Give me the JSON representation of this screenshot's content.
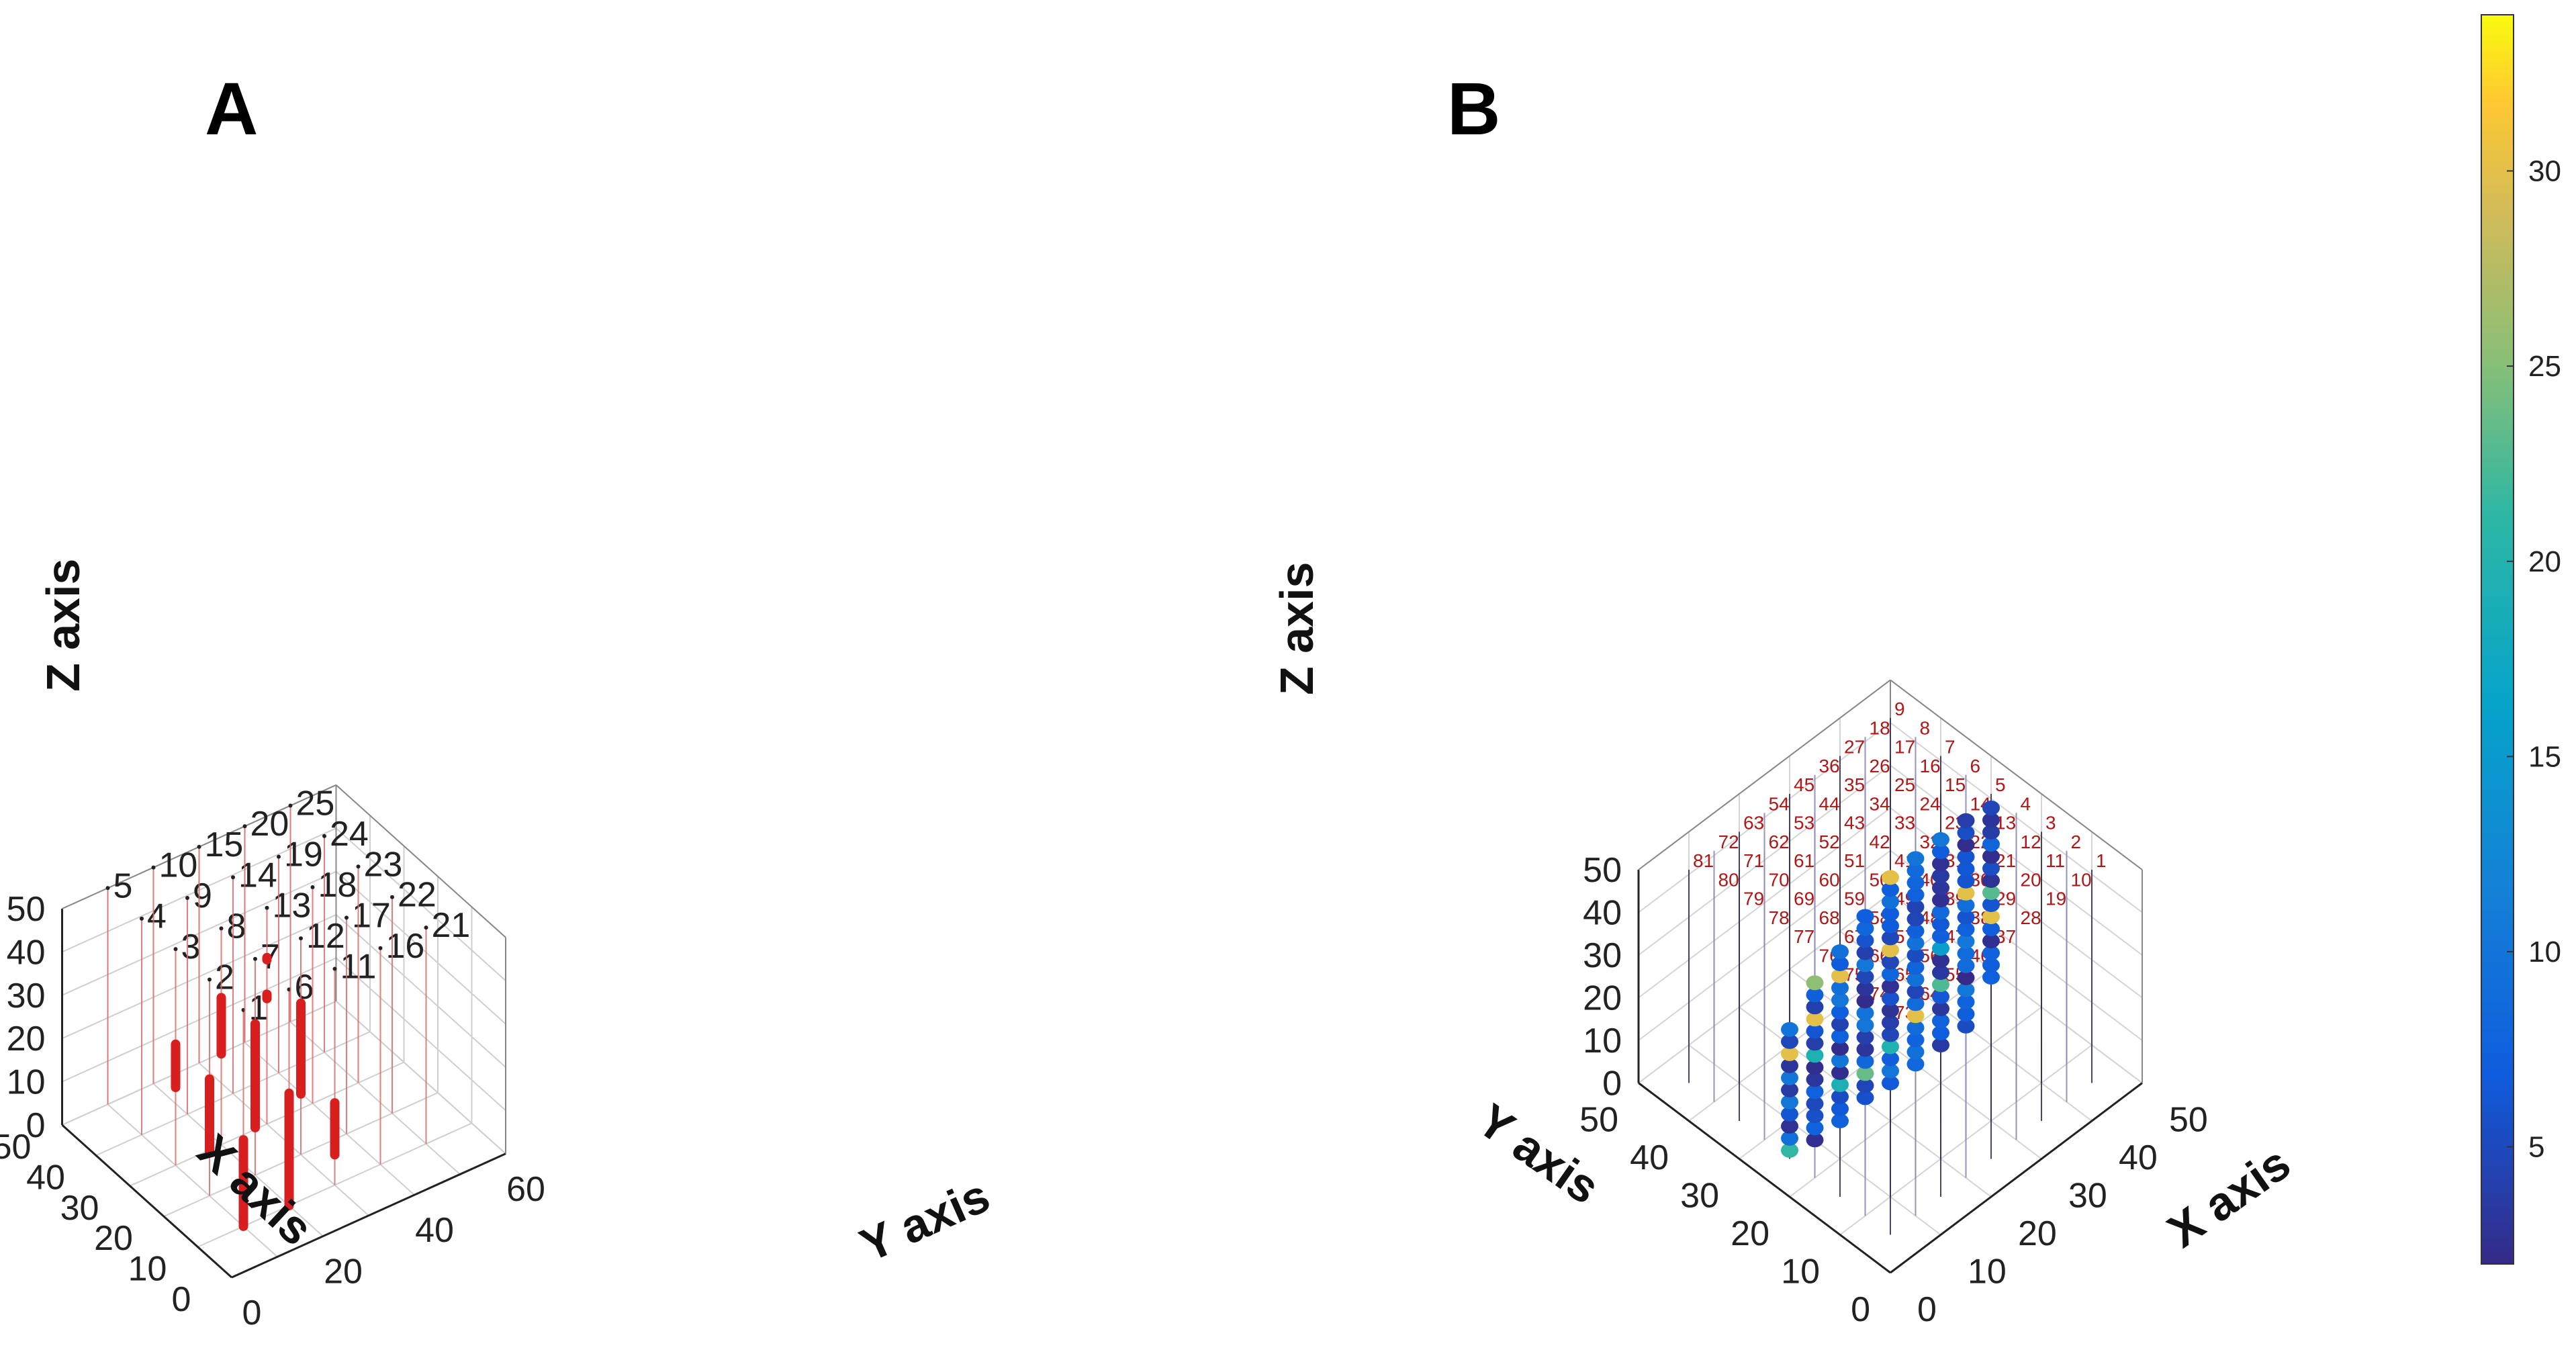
{
  "chart_data": [
    {
      "type": "scatter3d",
      "panel_label": "A",
      "xlabel": "X axis",
      "ylabel": "Y axis",
      "zlabel": "Z axis",
      "xlim": [
        0,
        50
      ],
      "ylim": [
        0,
        60
      ],
      "zlim": [
        0,
        50
      ],
      "x_ticks": [
        "0",
        "10",
        "20",
        "30",
        "40",
        "50"
      ],
      "y_ticks": [
        "0",
        "20",
        "40",
        "60"
      ],
      "z_ticks": [
        "0",
        "10",
        "20",
        "30",
        "40",
        "50"
      ],
      "grid": true,
      "marker_color": "#d81e1e",
      "boreholes": [
        {
          "label": "1",
          "x": 10,
          "y": 10,
          "segments": [
            [
              0,
              20
            ]
          ]
        },
        {
          "label": "2",
          "x": 20,
          "y": 10,
          "segments": [
            [
              10,
              27
            ]
          ]
        },
        {
          "label": "3",
          "x": 30,
          "y": 10,
          "segments": [
            [
              18,
              28
            ]
          ]
        },
        {
          "label": "4",
          "x": 40,
          "y": 10,
          "segments": []
        },
        {
          "label": "5",
          "x": 50,
          "y": 10,
          "segments": []
        },
        {
          "label": "6",
          "x": 10,
          "y": 20,
          "segments": [
            [
              0,
              26
            ]
          ]
        },
        {
          "label": "7",
          "x": 20,
          "y": 20,
          "segments": [
            [
              11,
              35
            ]
          ]
        },
        {
          "label": "8",
          "x": 30,
          "y": 20,
          "segments": [
            [
              21,
              34
            ]
          ]
        },
        {
          "label": "9",
          "x": 40,
          "y": 20,
          "segments": []
        },
        {
          "label": "10",
          "x": 50,
          "y": 20,
          "segments": []
        },
        {
          "label": "11",
          "x": 10,
          "y": 30,
          "segments": [
            [
              7,
              19
            ]
          ]
        },
        {
          "label": "12",
          "x": 20,
          "y": 30,
          "segments": [
            [
              14,
              35
            ]
          ]
        },
        {
          "label": "13",
          "x": 30,
          "y": 30,
          "segments": [
            [
              29,
              30
            ],
            [
              38,
              38.5
            ]
          ]
        },
        {
          "label": "14",
          "x": 40,
          "y": 30,
          "segments": []
        },
        {
          "label": "15",
          "x": 50,
          "y": 30,
          "segments": []
        },
        {
          "label": "16",
          "x": 10,
          "y": 40,
          "segments": []
        },
        {
          "label": "17",
          "x": 20,
          "y": 40,
          "segments": []
        },
        {
          "label": "18",
          "x": 30,
          "y": 40,
          "segments": []
        },
        {
          "label": "19",
          "x": 40,
          "y": 40,
          "segments": []
        },
        {
          "label": "20",
          "x": 50,
          "y": 40,
          "segments": []
        },
        {
          "label": "21",
          "x": 10,
          "y": 50,
          "segments": []
        },
        {
          "label": "22",
          "x": 20,
          "y": 50,
          "segments": []
        },
        {
          "label": "23",
          "x": 30,
          "y": 50,
          "segments": []
        },
        {
          "label": "24",
          "x": 40,
          "y": 50,
          "segments": []
        },
        {
          "label": "25",
          "x": 50,
          "y": 50,
          "segments": []
        }
      ]
    },
    {
      "type": "scatter3d",
      "panel_label": "B",
      "xlabel": "X axis",
      "ylabel": "Y axis",
      "zlabel": "Z axis",
      "xlim": [
        0,
        50
      ],
      "ylim": [
        0,
        50
      ],
      "zlim": [
        0,
        50
      ],
      "x_ticks": [
        "0",
        "10",
        "20",
        "30",
        "40",
        "50"
      ],
      "y_ticks": [
        "0",
        "10",
        "20",
        "30",
        "40",
        "50"
      ],
      "z_ticks": [
        "0",
        "10",
        "20",
        "30",
        "40",
        "50"
      ],
      "grid": true,
      "grid_size": 9,
      "grid_spacing": 5,
      "colorbar": {
        "min": 2,
        "max": 34,
        "ticks": [
          "5",
          "10",
          "15",
          "20",
          "25",
          "30"
        ],
        "colormap": "parula"
      },
      "column_labels": [
        "1",
        "2",
        "3",
        "4",
        "5",
        "6",
        "7",
        "8",
        "9",
        "10",
        "11",
        "12",
        "13",
        "14",
        "15",
        "16",
        "17",
        "18",
        "19",
        "20",
        "21",
        "22",
        "23",
        "24",
        "25",
        "26",
        "27",
        "28",
        "29",
        "30",
        "31",
        "32",
        "33",
        "34",
        "35",
        "36",
        "37",
        "38",
        "39",
        "40",
        "41",
        "42",
        "43",
        "44",
        "45",
        "46",
        "47",
        "48",
        "49",
        "50",
        "51",
        "52",
        "53",
        "54",
        "55",
        "56",
        "57",
        "58",
        "59",
        "60",
        "61",
        "62",
        "63",
        "64",
        "65",
        "66",
        "67",
        "68",
        "69",
        "70",
        "71",
        "72",
        "73",
        "74",
        "75",
        "76",
        "77",
        "78",
        "79",
        "80",
        "81"
      ],
      "data_rows": [
        {
          "x": 5,
          "segments": [
            [
              2,
              33
            ]
          ]
        },
        {
          "x": 10,
          "segments": [
            [
              0,
              37
            ]
          ]
        },
        {
          "x": 15,
          "segments": [
            [
              0,
              42
            ]
          ]
        },
        {
          "x": 20,
          "segments": [
            [
              1,
              45
            ]
          ]
        },
        {
          "x": 25,
          "segments": [
            [
              0,
              50
            ]
          ]
        },
        {
          "x": 30,
          "segments": [
            [
              0,
              50
            ]
          ]
        },
        {
          "x": 35,
          "segments": [
            [
              0,
              50
            ]
          ]
        },
        {
          "x": 40,
          "segments": [
            [
              0,
              50
            ]
          ]
        },
        {
          "x": 45,
          "segments": [
            [
              7,
              47
            ]
          ]
        }
      ]
    }
  ]
}
